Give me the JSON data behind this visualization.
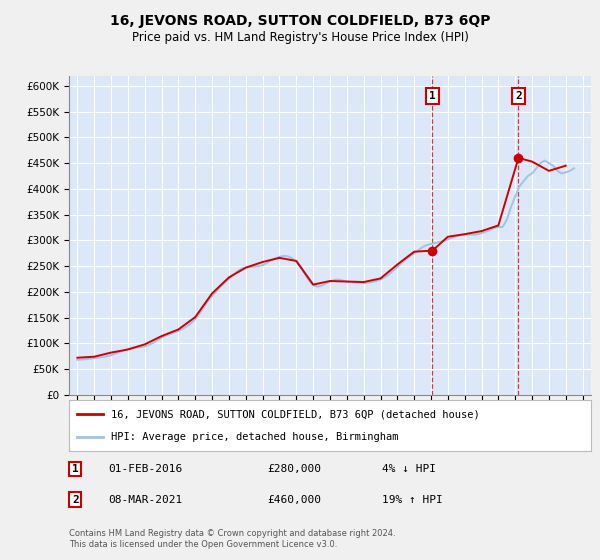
{
  "title": "16, JEVONS ROAD, SUTTON COLDFIELD, B73 6QP",
  "subtitle": "Price paid vs. HM Land Registry's House Price Index (HPI)",
  "ylabel_ticks": [
    "£0",
    "£50K",
    "£100K",
    "£150K",
    "£200K",
    "£250K",
    "£300K",
    "£350K",
    "£400K",
    "£450K",
    "£500K",
    "£550K",
    "£600K"
  ],
  "ytick_values": [
    0,
    50000,
    100000,
    150000,
    200000,
    250000,
    300000,
    350000,
    400000,
    450000,
    500000,
    550000,
    600000
  ],
  "background_color": "#f0f0f0",
  "plot_bg_color": "#dce8f8",
  "grid_color": "#ffffff",
  "hpi_line_color": "#a0c4e8",
  "price_line_color": "#cc0000",
  "t1_year": 2016.083,
  "t1_price": 280000,
  "t2_year": 2021.19,
  "t2_price": 460000,
  "legend_label1": "16, JEVONS ROAD, SUTTON COLDFIELD, B73 6QP (detached house)",
  "legend_label2": "HPI: Average price, detached house, Birmingham",
  "row1_date": "01-FEB-2016",
  "row1_price": "£280,000",
  "row1_pct": "4% ↓ HPI",
  "row2_date": "08-MAR-2021",
  "row2_price": "£460,000",
  "row2_pct": "19% ↑ HPI",
  "footer": "Contains HM Land Registry data © Crown copyright and database right 2024.\nThis data is licensed under the Open Government Licence v3.0.",
  "hpi_data": {
    "years": [
      1995.0,
      1995.25,
      1995.5,
      1995.75,
      1996.0,
      1996.25,
      1996.5,
      1996.75,
      1997.0,
      1997.25,
      1997.5,
      1997.75,
      1998.0,
      1998.25,
      1998.5,
      1998.75,
      1999.0,
      1999.25,
      1999.5,
      1999.75,
      2000.0,
      2000.25,
      2000.5,
      2000.75,
      2001.0,
      2001.25,
      2001.5,
      2001.75,
      2002.0,
      2002.25,
      2002.5,
      2002.75,
      2003.0,
      2003.25,
      2003.5,
      2003.75,
      2004.0,
      2004.25,
      2004.5,
      2004.75,
      2005.0,
      2005.25,
      2005.5,
      2005.75,
      2006.0,
      2006.25,
      2006.5,
      2006.75,
      2007.0,
      2007.25,
      2007.5,
      2007.75,
      2008.0,
      2008.25,
      2008.5,
      2008.75,
      2009.0,
      2009.25,
      2009.5,
      2009.75,
      2010.0,
      2010.25,
      2010.5,
      2010.75,
      2011.0,
      2011.25,
      2011.5,
      2011.75,
      2012.0,
      2012.25,
      2012.5,
      2012.75,
      2013.0,
      2013.25,
      2013.5,
      2013.75,
      2014.0,
      2014.25,
      2014.5,
      2014.75,
      2015.0,
      2015.25,
      2015.5,
      2015.75,
      2016.0,
      2016.25,
      2016.5,
      2016.75,
      2017.0,
      2017.25,
      2017.5,
      2017.75,
      2018.0,
      2018.25,
      2018.5,
      2018.75,
      2019.0,
      2019.25,
      2019.5,
      2019.75,
      2020.0,
      2020.25,
      2020.5,
      2020.75,
      2021.0,
      2021.25,
      2021.5,
      2021.75,
      2022.0,
      2022.25,
      2022.5,
      2022.75,
      2023.0,
      2023.25,
      2023.5,
      2023.75,
      2024.0,
      2024.25,
      2024.5
    ],
    "values": [
      68000,
      68500,
      69000,
      70000,
      71000,
      72000,
      73500,
      75000,
      77000,
      80000,
      83000,
      86000,
      89000,
      91000,
      92000,
      92500,
      94000,
      97000,
      101000,
      106000,
      111000,
      115000,
      118000,
      121000,
      124000,
      128000,
      133000,
      139000,
      147000,
      158000,
      170000,
      182000,
      192000,
      201000,
      210000,
      218000,
      225000,
      233000,
      240000,
      245000,
      247000,
      248000,
      249000,
      250000,
      252000,
      256000,
      261000,
      265000,
      268000,
      270000,
      269000,
      265000,
      258000,
      248000,
      235000,
      222000,
      213000,
      210000,
      212000,
      216000,
      220000,
      223000,
      224000,
      222000,
      220000,
      219000,
      218000,
      218000,
      217000,
      218000,
      219000,
      221000,
      224000,
      228000,
      234000,
      241000,
      248000,
      256000,
      263000,
      269000,
      275000,
      281000,
      287000,
      291000,
      293000,
      295000,
      297000,
      299000,
      302000,
      305000,
      308000,
      310000,
      311000,
      311000,
      311000,
      312000,
      314000,
      317000,
      320000,
      324000,
      326000,
      326000,
      340000,
      365000,
      385000,
      405000,
      415000,
      425000,
      430000,
      440000,
      450000,
      455000,
      450000,
      445000,
      435000,
      430000,
      432000,
      435000,
      440000
    ]
  },
  "price_data": {
    "years": [
      1995.0,
      1996.0,
      1997.0,
      1998.0,
      1999.0,
      2000.0,
      2001.0,
      2002.0,
      2003.0,
      2004.0,
      2005.0,
      2006.0,
      2007.0,
      2008.0,
      2009.0,
      2010.0,
      2011.0,
      2012.0,
      2013.0,
      2014.0,
      2015.0,
      2016.083,
      2017.0,
      2018.0,
      2019.0,
      2020.0,
      2021.19,
      2022.0,
      2023.0,
      2024.0
    ],
    "values": [
      72000,
      74000,
      82000,
      88000,
      98000,
      114000,
      127000,
      151000,
      197000,
      228000,
      247000,
      258000,
      266000,
      260000,
      214000,
      221000,
      220000,
      219000,
      226000,
      253000,
      278000,
      280000,
      307000,
      312000,
      318000,
      329000,
      460000,
      453000,
      435000,
      445000
    ]
  }
}
